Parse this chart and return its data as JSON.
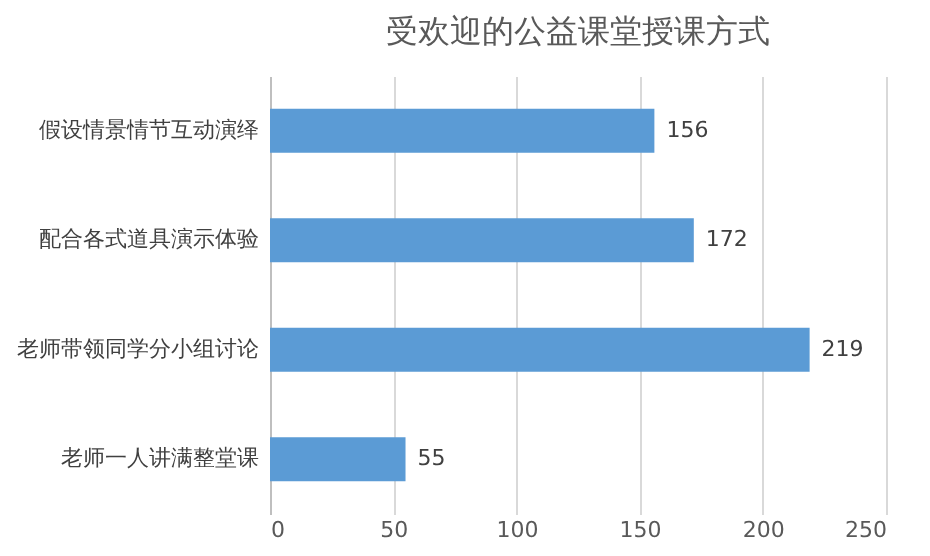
{
  "chart_data": {
    "type": "bar",
    "orientation": "horizontal",
    "title": "受欢迎的公益课堂授课方式",
    "categories": [
      "假设情景情节互动演绎",
      "配合各式道具演示体验",
      "老师带领同学分小组讨论",
      "老师一人讲满整堂课"
    ],
    "values": [
      156,
      172,
      219,
      55
    ],
    "color": "#5b9bd5",
    "xlim": [
      0,
      250
    ],
    "xticks": [
      0,
      50,
      100,
      150,
      200,
      250
    ],
    "grid": "x",
    "data_labels": true
  }
}
